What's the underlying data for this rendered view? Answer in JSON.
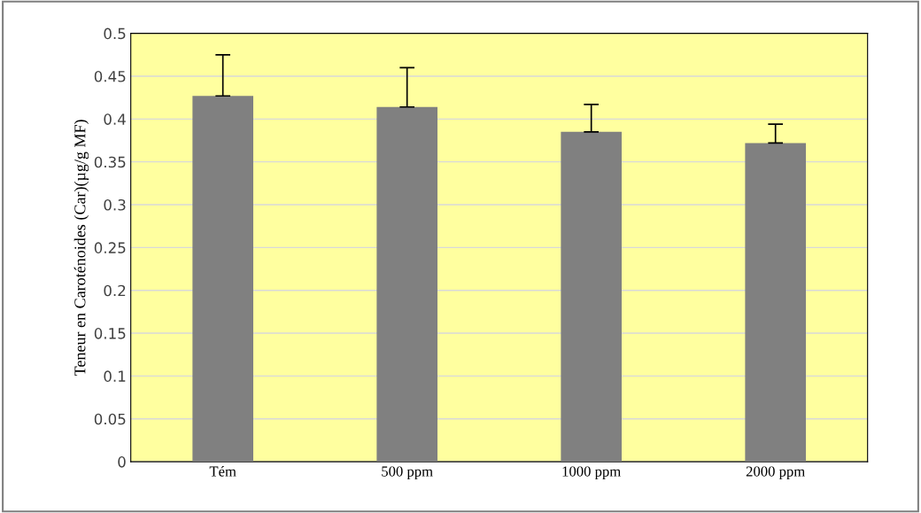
{
  "chart_data": {
    "type": "bar",
    "ylabel": "Teneur en Caroténoides (Car)(µg/g MF)",
    "categories": [
      "Tém",
      "500 ppm",
      "1000 ppm",
      "2000 ppm"
    ],
    "values": [
      0.427,
      0.414,
      0.385,
      0.372
    ],
    "color": "#808080",
    "errors": [
      [
        0.427,
        0.475
      ],
      [
        0.414,
        0.46
      ],
      [
        0.385,
        0.417
      ],
      [
        0.372,
        0.394
      ]
    ],
    "ylim": [
      0,
      0.5
    ],
    "yticks": [
      0,
      0.05,
      0.1,
      0.15,
      0.2,
      0.25,
      0.3,
      0.35,
      0.4,
      0.45,
      0.5
    ],
    "grid": "y"
  }
}
